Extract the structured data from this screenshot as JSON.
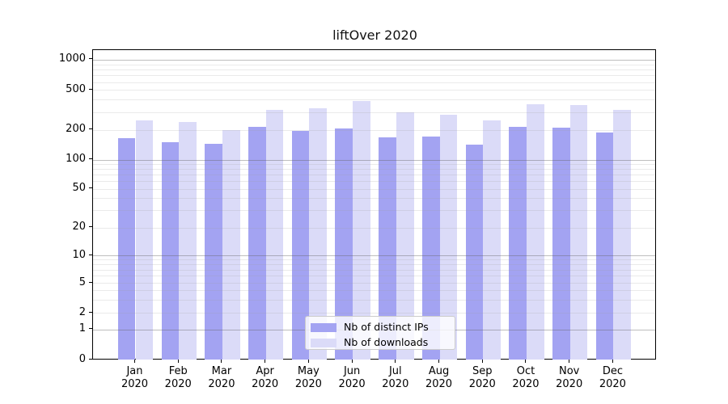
{
  "figure": {
    "title": "liftOver 2020"
  },
  "chart_data": {
    "type": "bar",
    "title": "liftOver 2020",
    "x_categories": [
      {
        "month": "Jan",
        "year": "2020"
      },
      {
        "month": "Feb",
        "year": "2020"
      },
      {
        "month": "Mar",
        "year": "2020"
      },
      {
        "month": "Apr",
        "year": "2020"
      },
      {
        "month": "May",
        "year": "2020"
      },
      {
        "month": "Jun",
        "year": "2020"
      },
      {
        "month": "Jul",
        "year": "2020"
      },
      {
        "month": "Aug",
        "year": "2020"
      },
      {
        "month": "Sep",
        "year": "2020"
      },
      {
        "month": "Oct",
        "year": "2020"
      },
      {
        "month": "Nov",
        "year": "2020"
      },
      {
        "month": "Dec",
        "year": "2020"
      }
    ],
    "series": [
      {
        "name": "Nb of distinct IPs",
        "color": "#a3a3f2",
        "values": [
          164,
          151,
          145,
          215,
          195,
          207,
          169,
          173,
          142,
          214,
          211,
          189
        ]
      },
      {
        "name": "Nb of downloads",
        "color": "#dbdbf8",
        "values": [
          251,
          238,
          200,
          319,
          331,
          390,
          302,
          283,
          247,
          358,
          356,
          317
        ]
      }
    ],
    "y_axis": {
      "scale": "symlog",
      "tick_labels": [
        0,
        1,
        2,
        5,
        10,
        20,
        50,
        100,
        200,
        500,
        1000
      ],
      "range": [
        0,
        1200
      ]
    },
    "grid": "horizontal log gridlines, drawn over bars",
    "legend_position": "lower center"
  }
}
